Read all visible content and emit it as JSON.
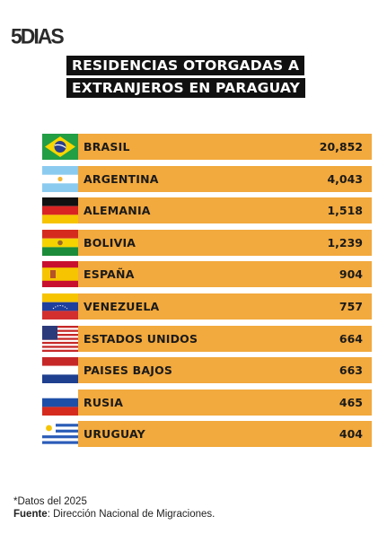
{
  "brand": {
    "logo_text": "5DIAS"
  },
  "title_lines": [
    "RESIDENCIAS OTORGADAS A",
    "EXTRANJEROS EN PARAGUAY"
  ],
  "chart_data": {
    "type": "bar",
    "categories": [
      "BRASIL",
      "ARGENTINA",
      "ALEMANIA",
      "BOLIVIA",
      "ESPAÑA",
      "VENEZUELA",
      "ESTADOS UNIDOS",
      "PAISES BAJOS",
      "RUSIA",
      "URUGUAY"
    ],
    "value_labels": [
      "20,852",
      "4,043",
      "1,518",
      "1,239",
      "904",
      "757",
      "664",
      "663",
      "465",
      "404"
    ],
    "values": [
      20852,
      4043,
      1518,
      1239,
      904,
      757,
      664,
      663,
      465,
      404
    ],
    "flag_icons": [
      "brazil-flag-icon",
      "argentina-flag-icon",
      "germany-flag-icon",
      "bolivia-flag-icon",
      "spain-flag-icon",
      "venezuela-flag-icon",
      "usa-flag-icon",
      "netherlands-flag-icon",
      "russia-flag-icon",
      "uruguay-flag-icon"
    ],
    "bar_color": "#f2a93d",
    "title": "RESIDENCIAS OTORGADAS A EXTRANJEROS EN PARAGUAY"
  },
  "footnote": {
    "note": "*Datos del 2025",
    "source_label": "Fuente",
    "source_text": ": Dirección Nacional de Migraciones."
  }
}
